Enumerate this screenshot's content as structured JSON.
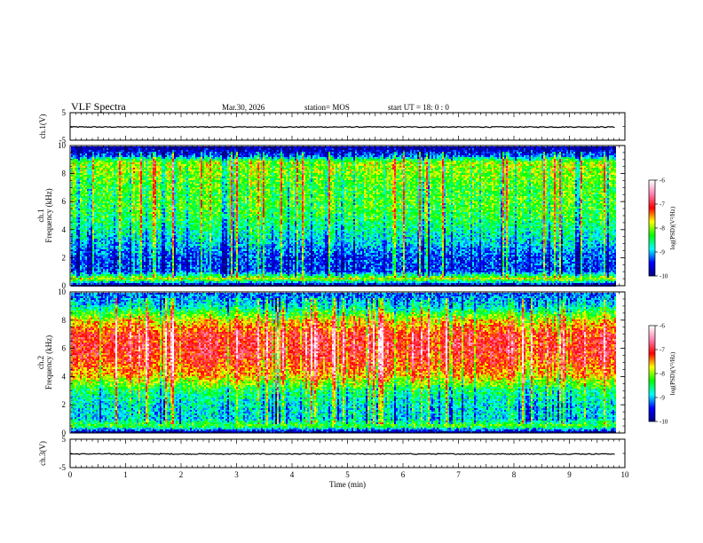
{
  "header": {
    "title": "VLF Spectra",
    "date": "Mar.30, 2026",
    "station": "station= MOS",
    "start": "start  UT  =   18: 0  : 0"
  },
  "chart_data": [
    {
      "type": "line",
      "panel": "ch1-waveform",
      "ylabel": "ch.1(V)",
      "ylim": [
        -5,
        5
      ],
      "yticks": [
        5,
        -5
      ],
      "xlim": [
        0,
        10
      ],
      "series": [
        {
          "values": [
            -0.2,
            -0.2,
            -0.2,
            -0.2,
            -0.2,
            -0.2,
            -0.2,
            -0.2,
            -0.2,
            -0.2,
            -0.2
          ]
        }
      ]
    },
    {
      "type": "heatmap",
      "panel": "ch1-spectrogram",
      "ylabel": "ch.1\nFrequency (kHz)",
      "ylim": [
        0,
        10
      ],
      "yticks": [
        0,
        2,
        4,
        6,
        8,
        10
      ],
      "xlim": [
        0,
        9.83
      ],
      "colorbar": {
        "label": "log(PSD)(V²/Hz)",
        "range": [
          -10,
          -6
        ],
        "ticks": [
          -6,
          -7,
          -8,
          -9,
          -10
        ]
      },
      "profile_khz": [
        0,
        0.5,
        1,
        2,
        3,
        4,
        5,
        6,
        7,
        8,
        8.8,
        9.3,
        10
      ],
      "profile_log_psd": [
        -10,
        -7.8,
        -9.3,
        -9.3,
        -8.9,
        -8.6,
        -8.3,
        -8.2,
        -8.2,
        -8.0,
        -7.9,
        -9.3,
        -10
      ]
    },
    {
      "type": "heatmap",
      "panel": "ch2-spectrogram",
      "ylabel": "ch.2\nFrequency (kHz)",
      "ylim": [
        0,
        10
      ],
      "yticks": [
        0,
        2,
        4,
        6,
        8,
        10
      ],
      "xlim": [
        0,
        9.83
      ],
      "colorbar": {
        "label": "log(PSD)(V²/Hz)",
        "range": [
          -10,
          -6
        ],
        "ticks": [
          -6,
          -7,
          -8,
          -9,
          -10
        ]
      },
      "profile_khz": [
        0,
        0.5,
        1,
        2,
        3,
        4,
        5,
        6,
        7,
        8,
        9,
        10
      ],
      "profile_log_psd": [
        -10,
        -8.2,
        -8.9,
        -8.8,
        -8.5,
        -7.6,
        -7.2,
        -7.0,
        -7.1,
        -7.7,
        -8.8,
        -9.3
      ]
    },
    {
      "type": "line",
      "panel": "ch3-waveform",
      "ylabel": "ch.3(V)",
      "ylim": [
        -5,
        5
      ],
      "yticks": [
        5,
        -5
      ],
      "xlim": [
        0,
        10
      ],
      "xlabel": "Time  (min)",
      "xticks": [
        0,
        1,
        2,
        3,
        4,
        5,
        6,
        7,
        8,
        9,
        10
      ],
      "series": [
        {
          "values": [
            -0.2,
            -0.2,
            -0.2,
            -0.2,
            -0.2,
            -0.2,
            -0.2,
            -0.2,
            -0.2,
            -0.2,
            -0.2
          ]
        }
      ]
    }
  ],
  "colors": {
    "colormap": [
      "#000080",
      "#0000ff",
      "#00ffff",
      "#00ff00",
      "#ffff00",
      "#ff0000",
      "#ff80b0",
      "#ffffff"
    ],
    "axis": "#000000"
  }
}
